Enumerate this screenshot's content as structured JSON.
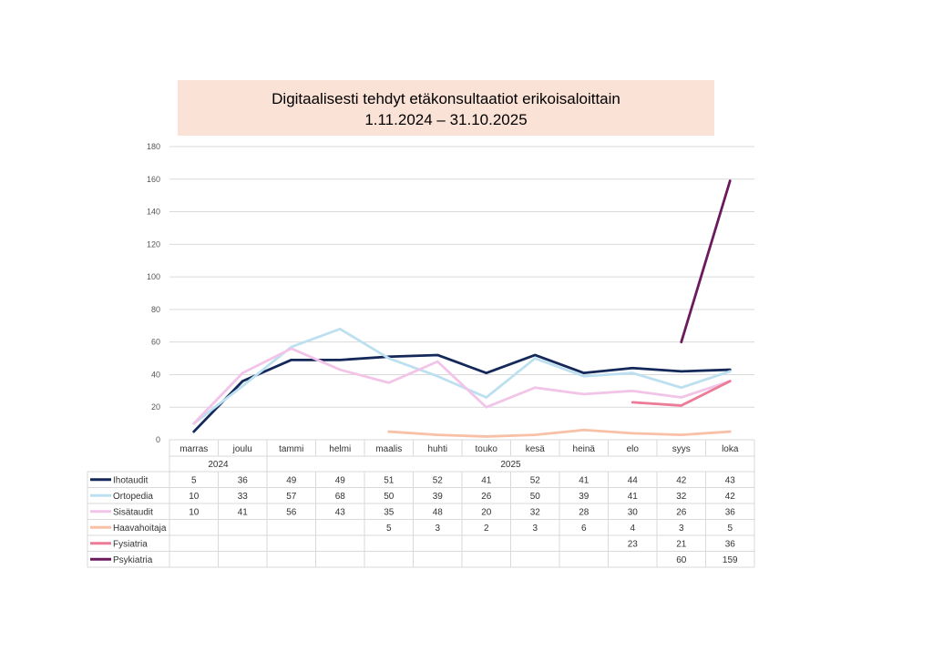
{
  "title": {
    "line1": "Digitaalisesti tehdyt etäkonsultaatiot erikoisaloittain",
    "line2": "1.11.2024 – 31.10.2025"
  },
  "chart_data": {
    "type": "line",
    "title": "Digitaalisesti tehdyt etäkonsultaatiot erikoisaloittain 1.11.2024 – 31.10.2025",
    "categories": [
      "marras",
      "joulu",
      "tammi",
      "helmi",
      "maalis",
      "huhti",
      "touko",
      "kesä",
      "heinä",
      "elo",
      "syys",
      "loka"
    ],
    "year_groups": [
      {
        "label": "2024",
        "span": 2
      },
      {
        "label": "2025",
        "span": 10
      }
    ],
    "ylim": [
      0,
      180
    ],
    "yticks": [
      0,
      20,
      40,
      60,
      80,
      100,
      120,
      140,
      160,
      180
    ],
    "grid": true,
    "legend": "data-table-below",
    "series": [
      {
        "name": "Ihotaudit",
        "color": "#14285a",
        "values": [
          5,
          36,
          49,
          49,
          51,
          52,
          41,
          52,
          41,
          44,
          42,
          43
        ]
      },
      {
        "name": "Ortopedia",
        "color": "#bde0f0",
        "values": [
          10,
          33,
          57,
          68,
          50,
          39,
          26,
          50,
          39,
          41,
          32,
          42
        ]
      },
      {
        "name": "Sisätaudit",
        "color": "#f2c4e8",
        "values": [
          10,
          41,
          56,
          43,
          35,
          48,
          20,
          32,
          28,
          30,
          26,
          36
        ]
      },
      {
        "name": "Haavahoitaja",
        "color": "#f8c0a6",
        "values": [
          null,
          null,
          null,
          null,
          5,
          3,
          2,
          3,
          6,
          4,
          3,
          5
        ]
      },
      {
        "name": "Fysiatria",
        "color": "#ec7b98",
        "values": [
          null,
          null,
          null,
          null,
          null,
          null,
          null,
          null,
          null,
          23,
          21,
          36
        ]
      },
      {
        "name": "Psykiatria",
        "color": "#6b1a5e",
        "values": [
          null,
          null,
          null,
          null,
          null,
          null,
          null,
          null,
          null,
          null,
          60,
          159
        ]
      }
    ]
  }
}
